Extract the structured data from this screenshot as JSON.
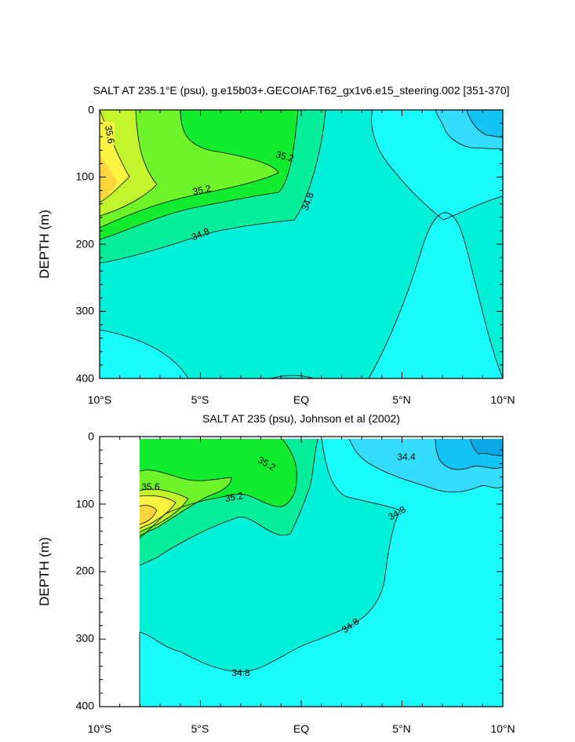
{
  "chart_data": [
    {
      "type": "contour",
      "title": "SALT AT 235.1°E (psu), g.e15b03+.GECOIAF.T62_gx1v6.e15_steering.002 [351-370]",
      "xlabel": "",
      "ylabel": "DEPTH (m)",
      "x_ticks": [
        "10°S",
        "5°S",
        "EQ",
        "5°N",
        "10°N"
      ],
      "y_ticks": [
        "0",
        "100",
        "200",
        "300",
        "400"
      ],
      "xlim": [
        -10,
        10
      ],
      "ylim": [
        400,
        0
      ],
      "contour_labels": [
        "35.6",
        "35.2",
        "35.2",
        "34.8",
        "34.8"
      ],
      "levels": [
        34.4,
        34.6,
        34.8,
        35.0,
        35.2,
        35.4,
        35.6,
        35.8
      ]
    },
    {
      "type": "contour",
      "title": "SALT AT 235 (psu), Johnson et al (2002)",
      "xlabel": "",
      "ylabel": "DEPTH (m)",
      "x_ticks": [
        "10°S",
        "5°S",
        "EQ",
        "5°N",
        "10°N"
      ],
      "y_ticks": [
        "0",
        "100",
        "200",
        "300",
        "400"
      ],
      "xlim": [
        -10,
        10
      ],
      "ylim": [
        400,
        0
      ],
      "contour_labels": [
        "35.6",
        "35.2",
        "35.2",
        "34.4",
        "34.8",
        "34.8",
        "34.8"
      ],
      "levels": [
        34.2,
        34.4,
        34.6,
        34.8,
        35.0,
        35.2,
        35.4,
        35.6,
        35.8
      ]
    }
  ],
  "colors": {
    "s342": "#12c4f3",
    "s344": "#33dcfa",
    "s346": "#18fcfc",
    "s348": "#03f0d8",
    "s350": "#06ee9b",
    "s352": "#11ec2e",
    "s354": "#6ef52a",
    "s356": "#c2f52a",
    "s358": "#fbf541",
    "s360": "#fcd63a",
    "line": "#000000"
  }
}
